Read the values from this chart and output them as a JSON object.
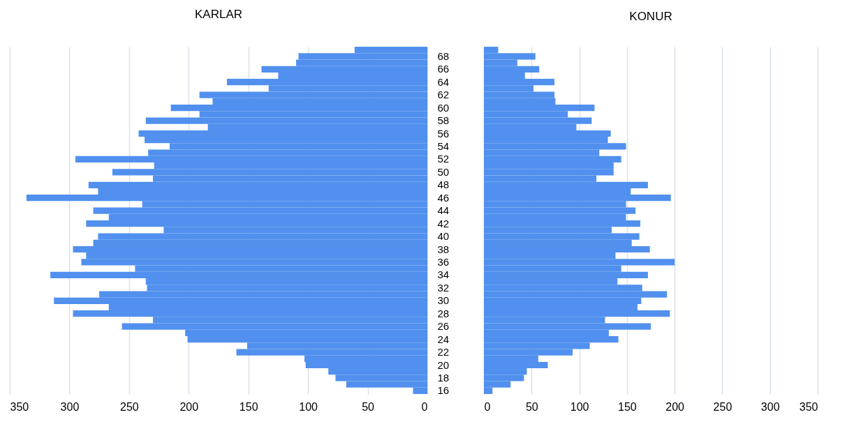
{
  "chart_data": [
    {
      "type": "bar",
      "orientation": "horizontal",
      "title": "KARLAR",
      "color": "#5190ee",
      "grid": "x",
      "xlim": [
        350,
        0
      ],
      "xticks": [
        350,
        300,
        250,
        200,
        150,
        100,
        50,
        0
      ],
      "categories": [
        null,
        "68",
        null,
        "66",
        null,
        "64",
        null,
        "62",
        null,
        "60",
        null,
        "58",
        null,
        "56",
        null,
        "54",
        null,
        "52",
        null,
        "50",
        null,
        "48",
        null,
        "46",
        null,
        "44",
        null,
        "42",
        null,
        "40",
        null,
        "38",
        null,
        "36",
        null,
        "34",
        null,
        "32",
        null,
        "30",
        null,
        "28",
        null,
        "26",
        null,
        "24",
        null,
        "22",
        null,
        "20",
        null,
        "18",
        null,
        "16"
      ],
      "values": [
        61,
        108,
        110,
        139,
        125,
        168,
        133,
        191,
        180,
        215,
        191,
        236,
        184,
        242,
        237,
        216,
        234,
        295,
        229,
        264,
        230,
        284,
        276,
        336,
        239,
        280,
        267,
        286,
        221,
        276,
        280,
        297,
        286,
        290,
        245,
        316,
        236,
        235,
        275,
        313,
        267,
        297,
        230,
        256,
        203,
        201,
        151,
        160,
        103,
        102,
        83,
        77,
        68,
        12
      ]
    },
    {
      "type": "bar",
      "orientation": "horizontal",
      "title": "KONUR",
      "color": "#5190ee",
      "grid": "x",
      "xlim": [
        0,
        350
      ],
      "xticks": [
        0,
        50,
        100,
        150,
        200,
        250,
        300,
        350
      ],
      "tick_labels": "x",
      "categories": [
        null,
        "68",
        null,
        "66",
        null,
        "64",
        null,
        "62",
        null,
        "60",
        null,
        "58",
        null,
        "56",
        null,
        "54",
        null,
        "52",
        null,
        "50",
        null,
        "48",
        null,
        "46",
        null,
        "44",
        null,
        "42",
        null,
        "40",
        null,
        "38",
        null,
        "36",
        null,
        "34",
        null,
        "32",
        null,
        "30",
        null,
        "28",
        null,
        "26",
        null,
        "24",
        null,
        "22",
        null,
        "20",
        null,
        "18",
        null,
        "16"
      ],
      "values": [
        15,
        54,
        35,
        58,
        43,
        74,
        52,
        74,
        75,
        116,
        88,
        113,
        97,
        133,
        130,
        149,
        121,
        144,
        136,
        136,
        118,
        172,
        154,
        196,
        149,
        159,
        149,
        164,
        134,
        163,
        155,
        174,
        138,
        200,
        144,
        172,
        140,
        166,
        192,
        165,
        161,
        195,
        127,
        175,
        131,
        141,
        111,
        93,
        57,
        67,
        45,
        42,
        28,
        9
      ]
    }
  ]
}
